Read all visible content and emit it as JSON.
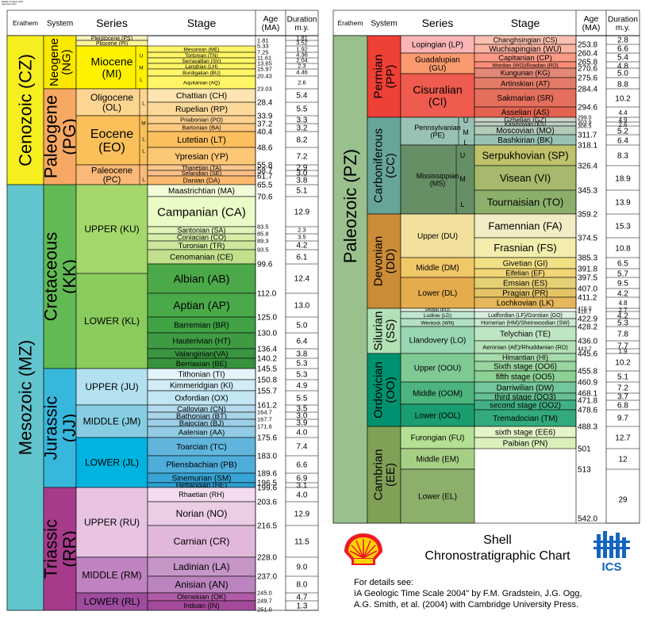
{
  "header": {
    "tiny_notes": [
      "Middle Jurassic (BJ)",
      "Aalenian (AA)"
    ]
  },
  "left_panel": {
    "columns": {
      "erathem": "Erathem",
      "system": "System",
      "series": "Series",
      "stage": "Stage",
      "age": "Age\n(MA)",
      "duration": "Duration\nm.y."
    },
    "erathems": [
      {
        "label": "Cenozoic (CZ)",
        "color": "#f6ee1f"
      },
      {
        "label": "Mesozoic (MZ)",
        "color": "#62c5cd"
      }
    ],
    "systems": [
      {
        "label": "Neogene (NG)",
        "color": "#fbe800"
      },
      {
        "label": "Paleogene (PG)",
        "color": "#f7a863"
      },
      {
        "label": "Cretaceous (KK)",
        "color": "#61ba54"
      },
      {
        "label": "Jurassic (JJ)",
        "color": "#38b7dc"
      },
      {
        "label": "Triassic (RR)",
        "color": "#a53b8a"
      }
    ],
    "series": [
      {
        "label": "Pleistocene (PS)",
        "color": "#fff3c1"
      },
      {
        "label": "Pliocene (PI)",
        "color": "#fff399"
      },
      {
        "label": "Miocene\n(MI)",
        "color": "#fff200"
      },
      {
        "label": "Oligocene\n(OL)",
        "color": "#fcd590"
      },
      {
        "label": "Eocene\n(EO)",
        "color": "#fbc05a"
      },
      {
        "label": "Paleocene\n(PC)",
        "color": "#fab978"
      },
      {
        "label": "UPPER (KU)",
        "color": "#a5d86c"
      },
      {
        "label": "LOWER (KL)",
        "color": "#8acb5d"
      },
      {
        "label": "UPPER (JU)",
        "color": "#b3e1ef"
      },
      {
        "label": "MIDDLE (JM)",
        "color": "#86cde3"
      },
      {
        "label": "LOWER (JL)",
        "color": "#00b3e0"
      },
      {
        "label": "UPPER (RU)",
        "color": "#e8c4e2"
      },
      {
        "label": "MIDDLE (RM)",
        "color": "#bf83c1"
      },
      {
        "label": "LOWER (RL)",
        "color": "#9e4c9f"
      }
    ],
    "subseries_marks": [
      "U",
      "M",
      "L",
      "L",
      "L",
      "M",
      "L",
      "L"
    ],
    "stages": [
      {
        "label": "Messinian (ME)",
        "color": "#fff566"
      },
      {
        "label": "Tortonian (TN)",
        "color": "#fff566"
      },
      {
        "label": "Serravallian (SV)",
        "color": "#fff566"
      },
      {
        "label": "Langhian (LH)",
        "color": "#fff566"
      },
      {
        "label": "Burdigalian (BU)",
        "color": "#fff566"
      },
      {
        "label": "Aquitanian (AQ)",
        "color": "#fff566"
      },
      {
        "label": "Chattian (CH)",
        "color": "#fee5b1"
      },
      {
        "label": "Rupelian (RP)",
        "color": "#fdd999"
      },
      {
        "label": "Priabonian (PO)",
        "color": "#fdd08f"
      },
      {
        "label": "Bartonian (BA)",
        "color": "#fdc97f"
      },
      {
        "label": "Lutetian (LT)",
        "color": "#fcbf5d"
      },
      {
        "label": "Ypresian (YP)",
        "color": "#fcc876"
      },
      {
        "label": "Thanetian (TA)",
        "color": "#fdc790"
      },
      {
        "label": "Selandian (SE)",
        "color": "#fdbf87"
      },
      {
        "label": "Danian (DA)",
        "color": "#fdb96e"
      },
      {
        "label": "Maastrichtian (MA)",
        "color": "#f2fbd8"
      },
      {
        "label": "Campanian (CA)",
        "color": "#eafbc7"
      },
      {
        "label": "Santonian (SA)",
        "color": "#e0f4b9"
      },
      {
        "label": "Coniacian (CO)",
        "color": "#d7eea9"
      },
      {
        "label": "Turonian (TR)",
        "color": "#cce89c"
      },
      {
        "label": "Cenomanian (CE)",
        "color": "#c1e08b"
      },
      {
        "label": "Albian (AB)",
        "color": "#4ca949"
      },
      {
        "label": "Aptian (AP)",
        "color": "#4aaa4a"
      },
      {
        "label": "Barremian (BR)",
        "color": "#40a245"
      },
      {
        "label": "Hauterivian (HT)",
        "color": "#3f9b43"
      },
      {
        "label": "Valanginian(VA)",
        "color": "#3a9541"
      },
      {
        "label": "Berriasian (BE)",
        "color": "#36923d"
      },
      {
        "label": "Tithonian (TI)",
        "color": "#e4f4fb"
      },
      {
        "label": "Kimmeridgian (KI)",
        "color": "#d2ecf6"
      },
      {
        "label": "Oxfordian (OX)",
        "color": "#c2e6f2"
      },
      {
        "label": "Callovian (CN)",
        "color": "#b3dbed"
      },
      {
        "label": "Bathonian (BT)",
        "color": "#a8d5ea"
      },
      {
        "label": "Bajocian (BJ)",
        "color": "#9ccfe7"
      },
      {
        "label": "Aalenian (AA)",
        "color": "#92cbe4"
      },
      {
        "label": "Toarcian (TC)",
        "color": "#61b5dd"
      },
      {
        "label": "Pliensbachian (PB)",
        "color": "#4fadda"
      },
      {
        "label": "Sinemurian (SM)",
        "color": "#38a5d6"
      },
      {
        "label": "Hettangian (HE)",
        "color": "#2ca0d3"
      },
      {
        "label": "Rhaetian (RH)",
        "color": "#f3dcef"
      },
      {
        "label": "Norian (NO)",
        "color": "#ebcde6"
      },
      {
        "label": "Carnian (CR)",
        "color": "#e1b8dc"
      },
      {
        "label": "Ladinian (LA)",
        "color": "#c696c7"
      },
      {
        "label": "Anisian (AN)",
        "color": "#bc84bf"
      },
      {
        "label": "Olenekian (OK)",
        "color": "#b15ca8"
      },
      {
        "label": "Induan (IN)",
        "color": "#a44a9b"
      }
    ],
    "ages": [
      "1.81",
      "5.33",
      "7.25",
      "11.61",
      "13.65",
      "15.97",
      "20.43",
      "23.03",
      "28.4",
      "33.9",
      "37.2",
      "40.4",
      "48.6",
      "55.8",
      "58.7",
      "61.7",
      "65.5",
      "70.6",
      "83.5",
      "85.8",
      "89.3",
      "93.5",
      "99.6",
      "112.0",
      "125.0",
      "130.0",
      "136.4",
      "140.2",
      "145.5",
      "150.8",
      "155.7",
      "161.2",
      "164.7",
      "167.7",
      "171.6",
      "175.6",
      "183.0",
      "189.6",
      "196.5",
      "199.6",
      "203.6",
      "216.5",
      "228.0",
      "237.0",
      "245.0",
      "249.7",
      "251.0"
    ],
    "durations": [
      "1.81",
      "3.52",
      "1.92",
      "4.36",
      "2.04",
      "2.3",
      "4.46",
      "2.6",
      "5.4",
      "5.5",
      "3.3",
      "3.2",
      "8.2",
      "7.2",
      "2.9",
      "3.0",
      "3.8",
      "5.1",
      "12.9",
      "2.3",
      "3.5",
      "4.2",
      "6.1",
      "12.4",
      "13.0",
      "5.0",
      "6.4",
      "3.8",
      "5.3",
      "5.3",
      "4.9",
      "5.5",
      "3.5",
      "3.0",
      "3.9",
      "4.0",
      "7.4",
      "6.6",
      "6.9",
      "3.1",
      "4.0",
      "12.9",
      "11.5",
      "9.0",
      "8.0",
      "4.7",
      "1.3"
    ]
  },
  "right_panel": {
    "columns": {
      "erathem": "Erathem",
      "system": "System",
      "series": "Series",
      "stage": "Stage",
      "age": "Age\n(MA)",
      "duration": "Duration\nm.y."
    },
    "erathem": {
      "label": "Paleozoic (PZ)",
      "color": "#99c08d"
    },
    "systems": [
      {
        "label": "Permian\n(PP)",
        "color": "#ef4036"
      },
      {
        "label": "Carboniferous\n(CC)",
        "color": "#67a599"
      },
      {
        "label": "Devonian\n(DD)",
        "color": "#cb8c37"
      },
      {
        "label": "Silurian\n(SS)",
        "color": "#b3e1b6"
      },
      {
        "label": "Ordovician\n(OO)",
        "color": "#009270"
      },
      {
        "label": "Cambrian\n(EE)",
        "color": "#7fa056"
      }
    ],
    "series": [
      {
        "label": "Lopingian (LP)",
        "color": "#fbb5b5"
      },
      {
        "label": "Guadalupian\n(GU)",
        "color": "#fa9a6e"
      },
      {
        "label": "Cisuralian\n(CI)",
        "color": "#ef5b4f"
      },
      {
        "label": "Pennsylvanian\n(PE)",
        "color": "#99c2b5"
      },
      {
        "label": "Mississippian\n(MS)",
        "color": "#678f66"
      },
      {
        "label": "Upper (DU)",
        "color": "#f1e19d"
      },
      {
        "label": "Middle (DM)",
        "color": "#f1c868"
      },
      {
        "label": "Lower (DL)",
        "color": "#e5ac4d"
      },
      {
        "label": "Pridoli (PD)",
        "color": "#e6f5e1"
      },
      {
        "label": "Ludlow (LD)",
        "color": "#bfe6cf"
      },
      {
        "label": "Wenlock (WN)",
        "color": "#b3e1c2"
      },
      {
        "label": "Llandovery (LO)",
        "color": "#99d7b3"
      },
      {
        "label": "Upper (OOU)",
        "color": "#7fca93"
      },
      {
        "label": "Middle (OOM)",
        "color": "#4db47e"
      },
      {
        "label": "Lower (OOL)",
        "color": "#1a9d6f"
      },
      {
        "label": "Furongian (FU)",
        "color": "#b3e095"
      },
      {
        "label": "Middle (EM)",
        "color": "#a6cf86"
      },
      {
        "label": "Lower (EL)",
        "color": "#8cb06c"
      }
    ],
    "subseries_marks": [
      "U",
      "M",
      "L",
      "U",
      "M",
      "L"
    ],
    "stages": [
      {
        "label": "Changhsingian (CS)",
        "color": "#fcc0b2"
      },
      {
        "label": "Wuchiapingian (WU)",
        "color": "#fcb4a2"
      },
      {
        "label": "Capitanian (CP)",
        "color": "#fb9a85"
      },
      {
        "label": "Wordian (WO)/Roadian (RO)",
        "color": "#fb8d76"
      },
      {
        "label": "Kungurian (KG)",
        "color": "#e38776"
      },
      {
        "label": "Artinskian (AT)",
        "color": "#e37b68"
      },
      {
        "label": "Sakmarian (SR)",
        "color": "#e36f5c"
      },
      {
        "label": "Asselian (AS)",
        "color": "#e36350"
      },
      {
        "label": "Gzhelian (GZ)",
        "color": "#ccd4c7"
      },
      {
        "label": "Kasimovian (KS)",
        "color": "#bfd0c5"
      },
      {
        "label": "Moscovian (MO)",
        "color": "#b3cbb9"
      },
      {
        "label": "Bashkirian (BK)",
        "color": "#99c2b5"
      },
      {
        "label": "Serpukhovian (SP)",
        "color": "#bfc26b"
      },
      {
        "label": "Visean (VI)",
        "color": "#a6b96c"
      },
      {
        "label": "Tournaisian (TO)",
        "color": "#8cb06c"
      },
      {
        "label": "Famennian (FA)",
        "color": "#f2edc5"
      },
      {
        "label": "Frasnian (FS)",
        "color": "#f2edad"
      },
      {
        "label": "Givetian (GI)",
        "color": "#f1e185"
      },
      {
        "label": "Eifelian (EF)",
        "color": "#f1d576"
      },
      {
        "label": "Emsian (ES)",
        "color": "#e5d075"
      },
      {
        "label": "Pragian (PR)",
        "color": "#e5c468"
      },
      {
        "label": "Lochkovian (LK)",
        "color": "#e5b75a"
      },
      {
        "label": "Ludfordian (LF)/Gorstian (GO)",
        "color": "#d9f0df"
      },
      {
        "label": "Homerian (HM)/Sheinwoodian (SW)",
        "color": "#cce9d3"
      },
      {
        "label": "Telychian (TE)",
        "color": "#bfe6c3"
      },
      {
        "label": "Aeronian (AE)/Rhuddanian (RD)",
        "color": "#b3e1b6"
      },
      {
        "label": "Himantian (HI)",
        "color": "#a6dbab"
      },
      {
        "label": "Sixth stage (OO6)",
        "color": "#99d69f"
      },
      {
        "label": "fifth stage (OO5)",
        "color": "#8cd094"
      },
      {
        "label": "Darriwilian (DW)",
        "color": "#74c69c"
      },
      {
        "label": "third stage (OO3)",
        "color": "#66c092"
      },
      {
        "label": "second stage (OO2)",
        "color": "#41b087"
      },
      {
        "label": "Tremadocian (TM)",
        "color": "#33a97e"
      },
      {
        "label": "sixth stage (EE6)",
        "color": "#e6f5c9"
      },
      {
        "label": "Paibian (PN)",
        "color": "#d9f0bb"
      }
    ],
    "ages": [
      "253.8",
      "260.4",
      "265.8",
      "270.6",
      "275.6",
      "284.4",
      "294.6",
      "299.0",
      "303.9",
      "306.5",
      "311.7",
      "318.1",
      "326.4",
      "345.3",
      "359.2",
      "374.5",
      "385.3",
      "391.8",
      "397.5",
      "407.0",
      "411.2",
      "416.0",
      "418.7",
      "422.9",
      "428.2",
      "436.0",
      "443.7",
      "445.6",
      "455.8",
      "460.9",
      "468.1",
      "471.8",
      "478.6",
      "488.3",
      "501",
      "513",
      "542.0"
    ],
    "durations": [
      "2.8",
      "6.6",
      "5.4",
      "4.8",
      "5.0",
      "8.8",
      "10.2",
      "4.4",
      "4.9",
      "2.6",
      "5.2",
      "6.4",
      "8.3",
      "18.9",
      "13.9",
      "15.3",
      "10.8",
      "6.5",
      "5.7",
      "9.5",
      "4.2",
      "4.8",
      "2.7",
      "4.2",
      "5.3",
      "7.8",
      "7.7",
      "1.9",
      "10.2",
      "5.1",
      "7.2",
      "3.7",
      "6.8",
      "9.7",
      "12.7",
      "12",
      "29"
    ]
  },
  "footer": {
    "logo_company": "Shell",
    "title_line1": "Shell",
    "title_line2": "Chronostratigraphic Chart",
    "ics_label": "ICS",
    "details_line1": "For details see:",
    "details_line2": "ìA Geologic Time Scale 2004\" by F.M. Gradstein, J.G. Ogg,",
    "details_line3": "A.G. Smith, et al. (2004) with Cambridge University Press."
  }
}
